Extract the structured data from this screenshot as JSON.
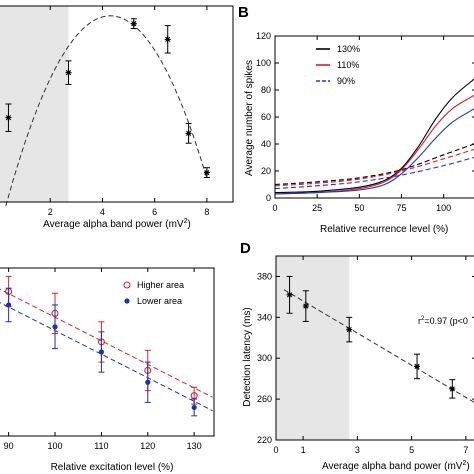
{
  "chart_data": [
    {
      "panel": "",
      "type": "scatter",
      "xlabel": "Average alpha band power (mV",
      "xlabel_sup": "2",
      "xlabel_end": ")",
      "xlim": [
        0,
        9
      ],
      "ylim": [
        0,
        1
      ],
      "x_ticks": [
        "2",
        "4",
        "6",
        "8"
      ],
      "x_tick_values": [
        2,
        4,
        6,
        8
      ],
      "y_ticks": [],
      "shaded_x_range": [
        0,
        2.7
      ],
      "points": [
        {
          "x": 0.4,
          "y": 0.43,
          "err": 0.07
        },
        {
          "x": 2.7,
          "y": 0.66,
          "err": 0.06
        },
        {
          "x": 5.2,
          "y": 0.91,
          "err": 0.025
        },
        {
          "x": 6.5,
          "y": 0.83,
          "err": 0.07
        },
        {
          "x": 7.3,
          "y": 0.35,
          "err": 0.05
        },
        {
          "x": 8.0,
          "y": 0.15,
          "err": 0.025
        }
      ],
      "fit": {
        "style": "dashed",
        "x_range": [
          0.3,
          8.0
        ],
        "peak_x": 4.3,
        "peak_y": 0.95
      }
    },
    {
      "panel": "B",
      "type": "line",
      "xlabel": "Relative recurrence level (%)",
      "ylabel": "Average number of spikes",
      "xlim": [
        0,
        118
      ],
      "ylim": [
        0,
        120
      ],
      "x_ticks": [
        "0",
        "25",
        "50",
        "75",
        "100"
      ],
      "x_tick_values": [
        0,
        25,
        50,
        75,
        100
      ],
      "y_ticks": [
        "0",
        "20",
        "40",
        "60",
        "80",
        "100",
        "120"
      ],
      "y_tick_values": [
        0,
        20,
        40,
        60,
        80,
        100,
        120
      ],
      "legend_position": "top-left",
      "legend": [
        {
          "label": "130%",
          "color": "#000000",
          "style": "solid"
        },
        {
          "label": "110%",
          "color": "#e41a1c",
          "style": "solid"
        },
        {
          "label": "90%",
          "color": "#2233cc",
          "style": "dashed"
        }
      ],
      "series": [
        {
          "name": "130%",
          "color": "#000000",
          "dash": false,
          "x": [
            0,
            25,
            50,
            65,
            75,
            85,
            95,
            105,
            118
          ],
          "y": [
            4,
            5,
            8,
            13,
            22,
            38,
            58,
            74,
            88
          ]
        },
        {
          "name": "130%",
          "color": "#000000",
          "dash": true,
          "x": [
            0,
            25,
            50,
            75,
            100,
            118
          ],
          "y": [
            10,
            12,
            15,
            21,
            32,
            40
          ]
        },
        {
          "name": "110%",
          "color": "#e41a1c",
          "dash": false,
          "x": [
            0,
            25,
            50,
            65,
            75,
            85,
            95,
            105,
            118
          ],
          "y": [
            3,
            4,
            7,
            12,
            21,
            36,
            53,
            66,
            76
          ]
        },
        {
          "name": "110%",
          "color": "#e41a1c",
          "dash": true,
          "x": [
            0,
            25,
            50,
            75,
            100,
            118
          ],
          "y": [
            9,
            11,
            14,
            20,
            29,
            36
          ]
        },
        {
          "name": "90%",
          "color": "#2233cc",
          "dash": false,
          "x": [
            0,
            25,
            50,
            65,
            75,
            85,
            95,
            105,
            118
          ],
          "y": [
            3,
            4,
            6,
            10,
            18,
            30,
            44,
            56,
            66
          ]
        },
        {
          "name": "90%",
          "color": "#2233cc",
          "dash": true,
          "x": [
            0,
            25,
            50,
            75,
            100,
            118
          ],
          "y": [
            7,
            9,
            12,
            17,
            24,
            30
          ]
        }
      ]
    },
    {
      "panel": "",
      "type": "scatter",
      "xlabel": "Relative excitation level (%)",
      "xlim": [
        89,
        136
      ],
      "ylim": [
        0,
        1
      ],
      "x_ticks": [
        "90",
        "100",
        "110",
        "120",
        "130"
      ],
      "x_tick_values": [
        90,
        100,
        110,
        120,
        130
      ],
      "y_ticks": [],
      "legend_position": "top-right",
      "legend": [
        {
          "label": "Higher area",
          "color": "#d62728",
          "marker": "open-circle"
        },
        {
          "label": "Lower area",
          "color": "#1f2fb4",
          "marker": "filled-circle"
        }
      ],
      "series": [
        {
          "name": "Higher area",
          "color": "#d62728",
          "marker": "open",
          "x": [
            90,
            100,
            110,
            120,
            130
          ],
          "y": [
            0.86,
            0.73,
            0.56,
            0.39,
            0.24
          ],
          "err": [
            0.09,
            0.12,
            0.12,
            0.12,
            0.05
          ],
          "fit_y": [
            0.86,
            0.23
          ],
          "fit_x": [
            90,
            134
          ]
        },
        {
          "name": "Lower area",
          "color": "#1f2fb4",
          "marker": "filled",
          "x": [
            90,
            100,
            110,
            120,
            130
          ],
          "y": [
            0.78,
            0.65,
            0.5,
            0.32,
            0.17
          ],
          "err": [
            0.1,
            0.13,
            0.12,
            0.12,
            0.05
          ],
          "fit_y": [
            0.78,
            0.15
          ],
          "fit_x": [
            90,
            134
          ]
        }
      ]
    },
    {
      "panel": "D",
      "type": "scatter",
      "xlabel": "Average alpha band power (mV",
      "xlabel_sup": "2",
      "xlabel_end": ")",
      "ylabel": "Detection latency (ms)",
      "xlim": [
        0,
        7.3
      ],
      "ylim": [
        220,
        400
      ],
      "x_ticks": [
        "0",
        "1",
        "3",
        "5",
        "7"
      ],
      "x_tick_values": [
        0,
        1,
        3,
        5,
        7
      ],
      "y_ticks": [
        "220",
        "260",
        "300",
        "340",
        "380"
      ],
      "y_tick_values": [
        220,
        260,
        300,
        340,
        380
      ],
      "shaded_x_range": [
        0,
        2.7
      ],
      "annotation": "r",
      "annotation_sup": "2",
      "annotation_rest": "=0.97 (p<0",
      "points": [
        {
          "x": 0.5,
          "y": 362,
          "err": 18
        },
        {
          "x": 1.1,
          "y": 351,
          "err": 15
        },
        {
          "x": 2.7,
          "y": 328,
          "err": 12
        },
        {
          "x": 5.2,
          "y": 292,
          "err": 12
        },
        {
          "x": 6.5,
          "y": 270,
          "err": 9
        }
      ],
      "fit": {
        "style": "dashed",
        "x_range": [
          0.3,
          7.3
        ],
        "y_range": [
          367,
          257
        ]
      }
    }
  ]
}
